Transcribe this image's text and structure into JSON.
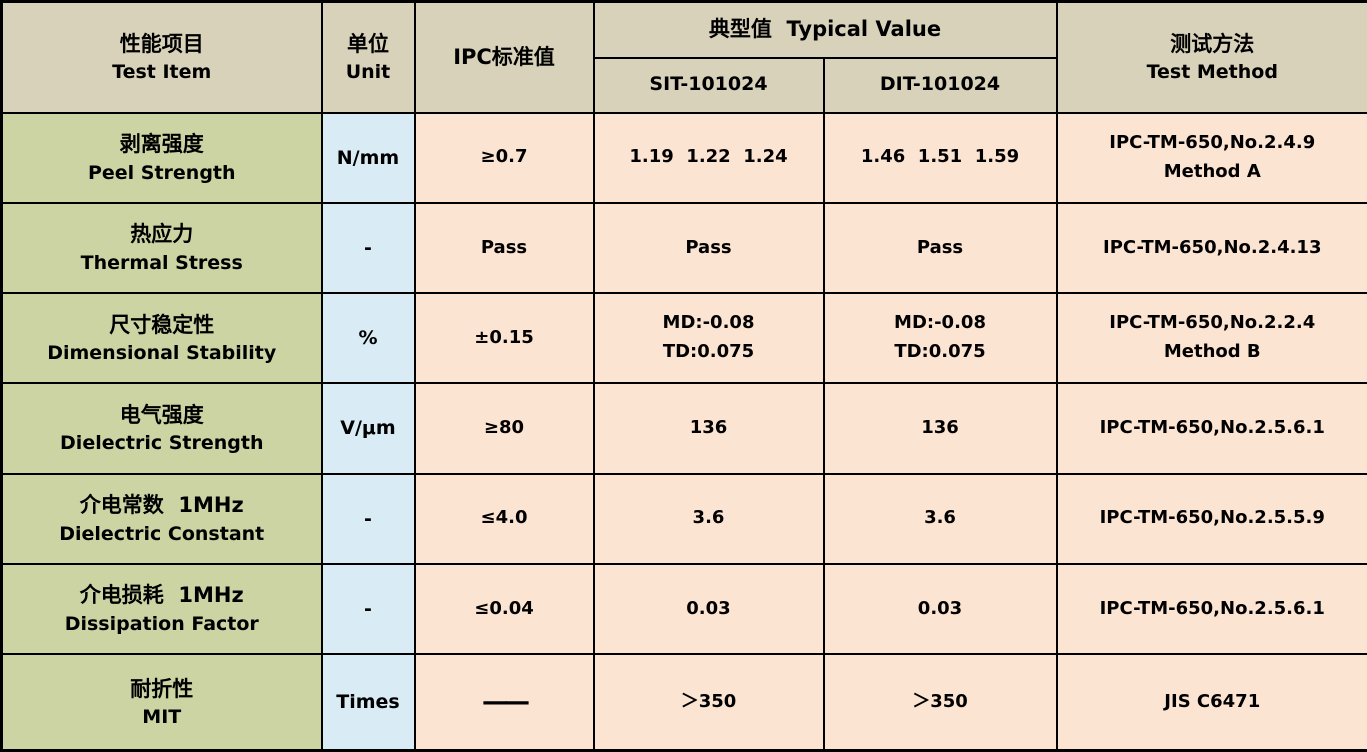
{
  "colors": {
    "header_bg": "#d8d2ba",
    "item_col_bg": "#ccd4a4",
    "unit_col_bg": "#d9ecf5",
    "value_col_bg": "#fce4d2",
    "border": "#000000",
    "text": "#000000"
  },
  "header": {
    "test_item_zh": "性能项目",
    "test_item_en": "Test Item",
    "unit_zh": "单位",
    "unit_en": "Unit",
    "ipc_standard": "IPC标准值",
    "typical_value": "典型值  Typical Value",
    "sub_columns": [
      "SIT-101024",
      "DIT-101024"
    ],
    "test_method_zh": "测试方法",
    "test_method_en": "Test Method"
  },
  "rows": [
    {
      "item_zh": "剥离强度",
      "item_en": "Peel Strength",
      "unit": "N/mm",
      "ipc": "≥0.7",
      "sit": [
        "1.19  1.22  1.24"
      ],
      "dit": [
        "1.46  1.51  1.59"
      ],
      "method": [
        "IPC-TM-650,No.2.4.9",
        "Method A"
      ]
    },
    {
      "item_zh": "热应力",
      "item_en": "Thermal Stress",
      "unit": "-",
      "ipc": "Pass",
      "sit": [
        "Pass"
      ],
      "dit": [
        "Pass"
      ],
      "method": [
        "IPC-TM-650,No.2.4.13"
      ]
    },
    {
      "item_zh": "尺寸稳定性",
      "item_en": "Dimensional Stability",
      "unit": "%",
      "ipc": "±0.15",
      "sit": [
        "MD:-0.08",
        "TD:0.075"
      ],
      "dit": [
        "MD:-0.08",
        "TD:0.075"
      ],
      "method": [
        "IPC-TM-650,No.2.2.4",
        "Method B"
      ]
    },
    {
      "item_zh": "电气强度",
      "item_en": "Dielectric Strength",
      "unit": "V/μm",
      "ipc": "≥80",
      "sit": [
        "136"
      ],
      "dit": [
        "136"
      ],
      "method": [
        "IPC-TM-650,No.2.5.6.1"
      ]
    },
    {
      "item_zh": "介电常数  1MHz",
      "item_en": "Dielectric Constant",
      "unit": "-",
      "ipc": "≤4.0",
      "sit": [
        "3.6"
      ],
      "dit": [
        "3.6"
      ],
      "method": [
        "IPC-TM-650,No.2.5.5.9"
      ]
    },
    {
      "item_zh": "介电损耗  1MHz",
      "item_en": "Dissipation Factor",
      "unit": "-",
      "ipc": "≤0.04",
      "sit": [
        "0.03"
      ],
      "dit": [
        "0.03"
      ],
      "method": [
        "IPC-TM-650,No.2.5.6.1"
      ]
    },
    {
      "item_zh": "耐折性",
      "item_en": "MIT",
      "unit": "Times",
      "ipc": "——",
      "sit": [
        "＞350"
      ],
      "dit": [
        "＞350"
      ],
      "method": [
        "JIS C6471"
      ]
    }
  ]
}
